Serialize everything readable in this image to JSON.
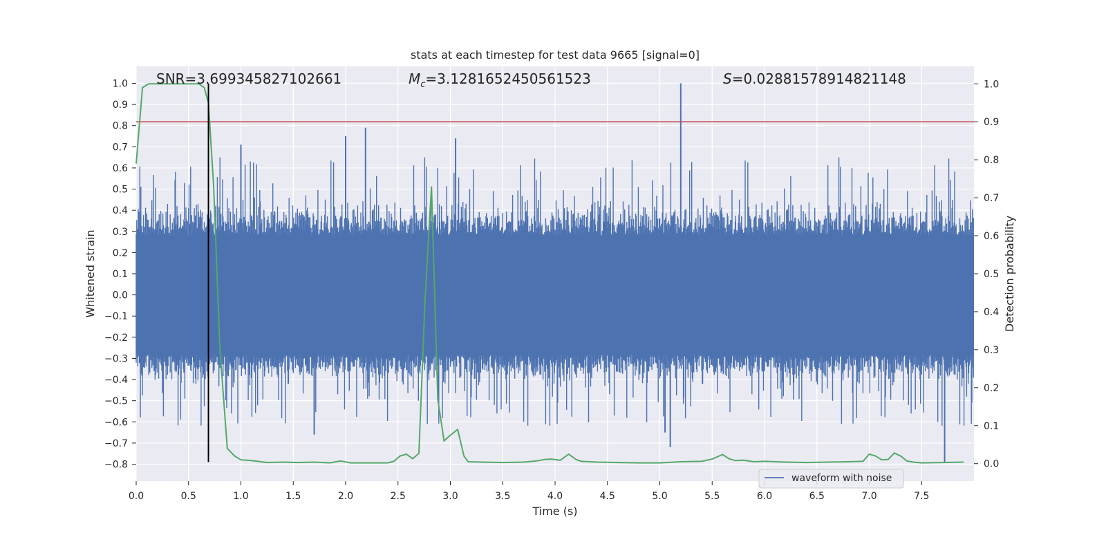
{
  "chart_data": {
    "type": "line",
    "title": "stats at each timestep for test data 9665 [signal=0]",
    "xlabel": "Time (s)",
    "ylabel": "Whitened strain",
    "y2label": "Detection probability",
    "xlim": [
      0.0,
      8.0
    ],
    "ylim": [
      -0.88,
      1.08
    ],
    "y2lim": [
      -0.046,
      1.046
    ],
    "grid": true,
    "x_ticks": [
      0.0,
      0.5,
      1.0,
      1.5,
      2.0,
      2.5,
      3.0,
      3.5,
      4.0,
      4.5,
      5.0,
      5.5,
      6.0,
      6.5,
      7.0,
      7.5
    ],
    "x_tick_labels": [
      "0.0",
      "0.5",
      "1.0",
      "1.5",
      "2.0",
      "2.5",
      "3.0",
      "3.5",
      "4.0",
      "4.5",
      "5.0",
      "5.5",
      "6.0",
      "6.5",
      "7.0",
      "7.5"
    ],
    "y_ticks": [
      -0.8,
      -0.7,
      -0.6,
      -0.5,
      -0.4,
      -0.3,
      -0.2,
      -0.1,
      0.0,
      0.1,
      0.2,
      0.3,
      0.4,
      0.5,
      0.6,
      0.7,
      0.8,
      0.9,
      1.0
    ],
    "y_tick_labels": [
      "−0.8",
      "−0.7",
      "−0.6",
      "−0.5",
      "−0.4",
      "−0.3",
      "−0.2",
      "−0.1",
      "0.0",
      "0.1",
      "0.2",
      "0.3",
      "0.4",
      "0.5",
      "0.6",
      "0.7",
      "0.8",
      "0.9",
      "1.0"
    ],
    "y2_ticks": [
      0.0,
      0.1,
      0.2,
      0.3,
      0.4,
      0.5,
      0.6,
      0.7,
      0.8,
      0.9,
      1.0
    ],
    "y2_tick_labels": [
      "0.0",
      "0.1",
      "0.2",
      "0.3",
      "0.4",
      "0.5",
      "0.6",
      "0.7",
      "0.8",
      "0.9",
      "1.0"
    ],
    "annotations": {
      "snr": "SNR=3.699345827102661",
      "mc_symbol": "M",
      "mc_sub": "c",
      "mc_value": "=3.1281652450561523",
      "s_symbol": "S",
      "s_value": "=0.02881578914821148"
    },
    "threshold_y2": 0.9,
    "marker_x": 0.69,
    "series": [
      {
        "name": "waveform with noise",
        "axis": "left",
        "color": "#4c72b0",
        "kind": "noise",
        "duration_s": 8.0,
        "core_amplitude": 0.28,
        "notable_peaks": [
          {
            "x": 5.2,
            "y": 1.0
          },
          {
            "x": 2.19,
            "y": 0.79
          },
          {
            "x": 2.0,
            "y": 0.75
          },
          {
            "x": 3.05,
            "y": 0.74
          },
          {
            "x": 1.0,
            "y": 0.71
          },
          {
            "x": 5.1,
            "y": -0.72
          },
          {
            "x": 7.72,
            "y": -0.79
          },
          {
            "x": 5.05,
            "y": -0.65
          },
          {
            "x": 1.7,
            "y": -0.66
          }
        ]
      },
      {
        "axis": "right",
        "color": "#55a868",
        "x": [
          0.0,
          0.06,
          0.12,
          0.2,
          0.3,
          0.4,
          0.5,
          0.6,
          0.65,
          0.69,
          0.74,
          0.8,
          0.87,
          0.94,
          1.0,
          1.1,
          1.25,
          1.4,
          1.55,
          1.7,
          1.85,
          1.95,
          2.05,
          2.2,
          2.3,
          2.4,
          2.46,
          2.52,
          2.58,
          2.64,
          2.7,
          2.76,
          2.82,
          2.88,
          2.94,
          3.0,
          3.07,
          3.13,
          3.17,
          3.3,
          3.5,
          3.7,
          3.82,
          3.9,
          3.96,
          4.05,
          4.13,
          4.2,
          4.25,
          4.4,
          4.6,
          4.8,
          5.0,
          5.2,
          5.4,
          5.5,
          5.6,
          5.66,
          5.72,
          5.8,
          5.9,
          6.0,
          6.2,
          6.4,
          6.6,
          6.8,
          6.94,
          7.0,
          7.06,
          7.12,
          7.18,
          7.24,
          7.3,
          7.36,
          7.42,
          7.5,
          7.7,
          7.9
        ],
        "values": [
          0.79,
          0.99,
          1.0,
          1.0,
          1.0,
          1.0,
          1.0,
          1.0,
          0.99,
          0.95,
          0.73,
          0.3,
          0.04,
          0.02,
          0.01,
          0.008,
          0.003,
          0.004,
          0.003,
          0.004,
          0.002,
          0.007,
          0.002,
          0.002,
          0.002,
          0.002,
          0.006,
          0.02,
          0.025,
          0.013,
          0.027,
          0.44,
          0.73,
          0.17,
          0.06,
          0.075,
          0.09,
          0.02,
          0.005,
          0.004,
          0.003,
          0.004,
          0.007,
          0.011,
          0.012,
          0.009,
          0.025,
          0.011,
          0.006,
          0.004,
          0.003,
          0.002,
          0.002,
          0.005,
          0.006,
          0.012,
          0.024,
          0.013,
          0.008,
          0.009,
          0.005,
          0.006,
          0.004,
          0.003,
          0.004,
          0.005,
          0.006,
          0.025,
          0.02,
          0.01,
          0.011,
          0.028,
          0.02,
          0.007,
          0.004,
          0.002,
          0.003,
          0.004
        ]
      }
    ],
    "legend": {
      "position": "lower-right",
      "entries": [
        "waveform with noise"
      ]
    }
  }
}
